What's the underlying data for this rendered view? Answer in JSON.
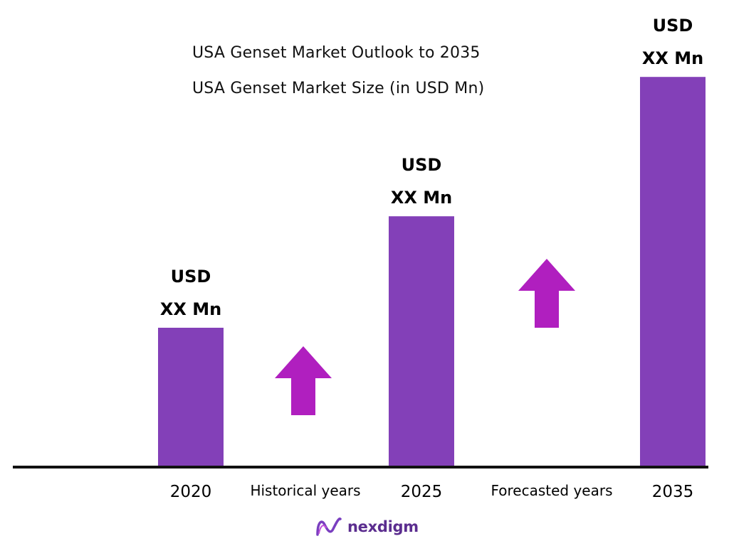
{
  "header": {
    "title": "USA Genset Market Outlook to 2035",
    "subtitle": "USA Genset Market Size (in USD Mn)"
  },
  "chart_data": {
    "type": "bar",
    "title": "USA Genset Market Outlook to 2035",
    "subtitle": "USA Genset Market Size (in USD Mn)",
    "categories": [
      "2020",
      "2025",
      "2035"
    ],
    "values": [
      10,
      18,
      28
    ],
    "value_labels": [
      [
        "USD",
        "XX Mn"
      ],
      [
        "USD",
        "XX Mn"
      ],
      [
        "USD",
        "XX Mn"
      ]
    ],
    "period_labels": [
      "Historical years",
      "Forecasted years"
    ],
    "bar_color": "#8340b8",
    "arrow_color": "#b01fbf",
    "axis_color": "#111111",
    "xlabel": "",
    "ylabel": "",
    "grid": false
  },
  "brand": {
    "name": "nexdigm",
    "color": "#5b2d8f"
  }
}
